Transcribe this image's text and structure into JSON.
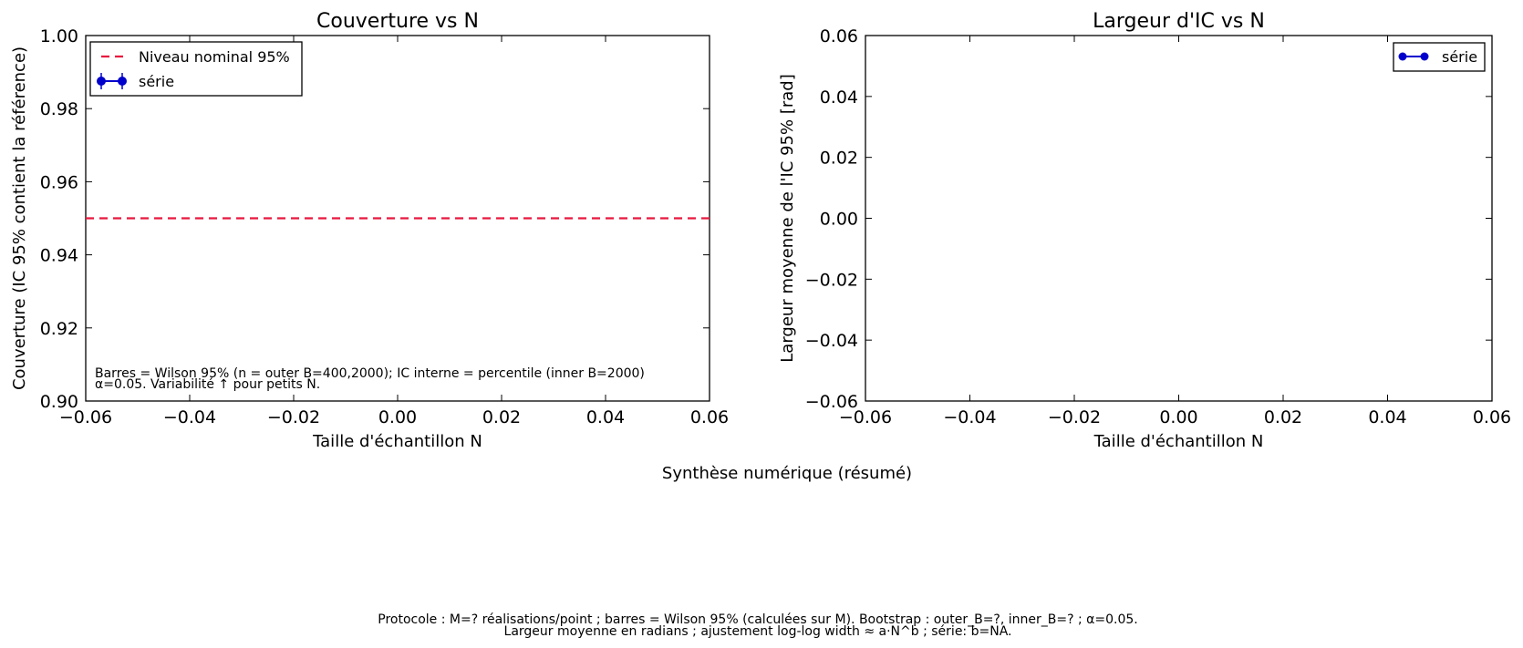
{
  "chart_data": [
    {
      "type": "line",
      "title": "Couverture vs N",
      "xlabel": "Taille d'échantillon N",
      "ylabel": "Couverture (IC 95% contient la référence)",
      "xlim": [
        -0.06,
        0.06
      ],
      "ylim": [
        0.9,
        1.0
      ],
      "xticks": [
        "−0.06",
        "−0.04",
        "−0.02",
        "0.00",
        "0.02",
        "0.04",
        "0.06"
      ],
      "yticks": [
        "0.90",
        "0.92",
        "0.94",
        "0.96",
        "0.98",
        "1.00"
      ],
      "grid": false,
      "legend_position": "top-left",
      "series": [
        {
          "name": "Niveau nominal 95%",
          "kind": "hline",
          "y": 0.95,
          "color": "#e8173f",
          "style": "dashed"
        },
        {
          "name": "série",
          "kind": "errorbar",
          "x": [],
          "y": [],
          "color": "#0000cc"
        }
      ],
      "annotations": [
        "Barres = Wilson 95% (n = outer B=400,2000); IC interne = percentile (inner B=2000)",
        "α=0.05. Variabilité ↑ pour petits N."
      ]
    },
    {
      "type": "line",
      "title": "Largeur d'IC vs N",
      "xlabel": "Taille d'échantillon N",
      "ylabel": "Largeur moyenne de l'IC 95% [rad]",
      "xlim": [
        -0.06,
        0.06
      ],
      "ylim": [
        -0.06,
        0.06
      ],
      "xticks": [
        "−0.06",
        "−0.04",
        "−0.02",
        "0.00",
        "0.02",
        "0.04",
        "0.06"
      ],
      "yticks": [
        "−0.06",
        "−0.04",
        "−0.02",
        "0.00",
        "0.02",
        "0.04",
        "0.06"
      ],
      "grid": false,
      "legend_position": "top-right",
      "series": [
        {
          "name": "série",
          "kind": "line-marker",
          "x": [],
          "y": [],
          "color": "#0000cc"
        }
      ]
    }
  ],
  "summary_title": "Synthèse numérique (résumé)",
  "footer": [
    "Protocole : M=? réalisations/point ; barres = Wilson 95% (calculées sur M). Bootstrap : outer_B=?, inner_B=? ; α=0.05.",
    "Largeur moyenne en radians ; ajustement log-log width ≈ a·N^b ; série: b=NA."
  ]
}
